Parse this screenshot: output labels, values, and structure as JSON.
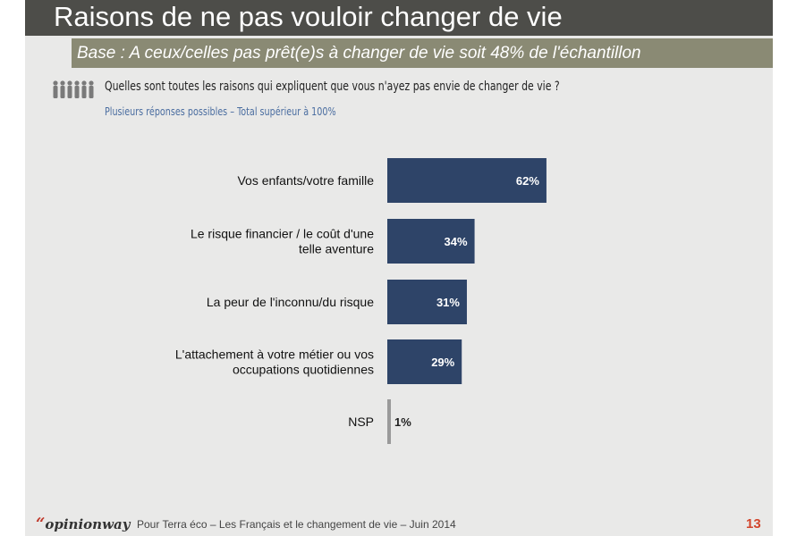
{
  "title": "Raisons de ne pas vouloir changer de vie",
  "subtitle": "Base : A ceux/celles pas prêt(e)s à changer de vie soit 48% de l'échantillon",
  "question": "Quelles sont toutes les raisons qui expliquent que vous n'ayez pas envie de changer de vie ?",
  "note": "Plusieurs réponses possibles – Total supérieur à 100%",
  "icons": {
    "question": "people-icon"
  },
  "colors": {
    "bar": "#2e4468",
    "bar_small": "#9a9a9a",
    "title_bar": "#4d4d49",
    "subtitle_bar": "#8a8a74",
    "page_number": "#d2452c"
  },
  "chart_data": {
    "type": "bar",
    "orientation": "horizontal",
    "categories": [
      [
        "Vos enfants/votre famille"
      ],
      [
        "Le risque financier / le coût d'une",
        "telle aventure"
      ],
      [
        "La peur de l'inconnu/du risque"
      ],
      [
        "L'attachement à votre métier ou vos",
        "occupations quotidiennes"
      ],
      [
        "NSP"
      ]
    ],
    "values": [
      62,
      34,
      31,
      29,
      1
    ],
    "value_labels": [
      "62%",
      "34%",
      "31%",
      "29%",
      "1%"
    ],
    "unit": "%",
    "xlim": [
      0,
      100
    ],
    "grid": false,
    "legend": "none"
  },
  "footer": {
    "logo_quote": "“",
    "logo": "opinionway",
    "text": "Pour Terra éco – Les Français et le changement de vie – Juin 2014",
    "page_number": "13"
  }
}
